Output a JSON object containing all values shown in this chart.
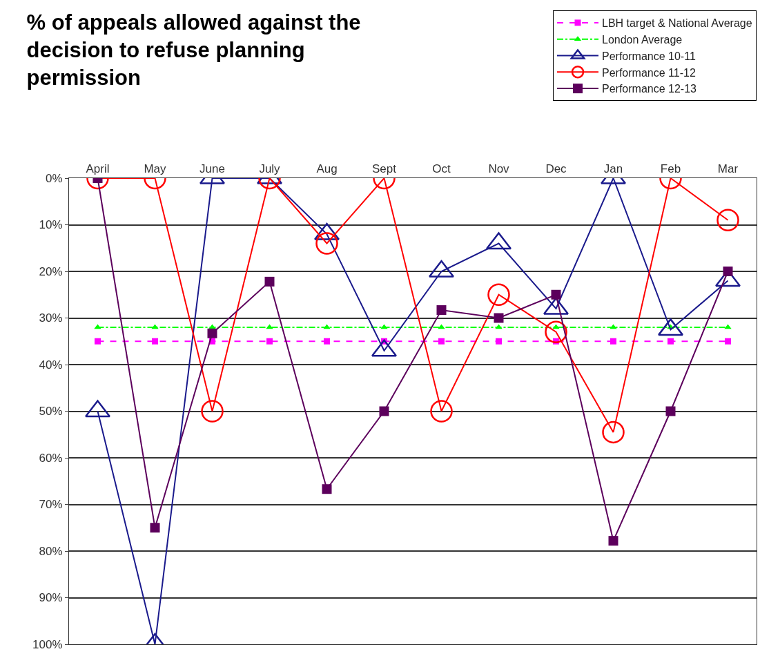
{
  "chart_data": {
    "type": "line",
    "title": "% of appeals allowed against the decision to refuse planning permission",
    "categories": [
      "April",
      "May",
      "June",
      "July",
      "Aug",
      "Sept",
      "Oct",
      "Nov",
      "Dec",
      "Jan",
      "Feb",
      "Mar"
    ],
    "series": [
      {
        "name": "LBH target & National Average",
        "color": "#ff00ff",
        "marker": "square",
        "line_style": "dashed",
        "values": [
          35,
          35,
          35,
          35,
          35,
          35,
          35,
          35,
          35,
          35,
          35,
          35
        ]
      },
      {
        "name": "London Average",
        "color": "#00ff00",
        "marker": "triangle",
        "line_style": "dashed",
        "values": [
          32,
          32,
          32,
          32,
          32,
          32,
          32,
          32,
          32,
          32,
          32,
          32
        ]
      },
      {
        "name": "Performance 10-11",
        "color": "#1a1a8c",
        "marker": "triangle",
        "line_style": "solid",
        "values": [
          50,
          100,
          0,
          0,
          12,
          37,
          20,
          14,
          28,
          0,
          32.5,
          22
        ]
      },
      {
        "name": "Performance 11-12",
        "color": "#ff0000",
        "marker": "circle",
        "line_style": "solid",
        "values": [
          0,
          0,
          50,
          0,
          14,
          0,
          50,
          25,
          33,
          54.5,
          0,
          9
        ]
      },
      {
        "name": "Performance 12-13",
        "color": "#5c005c",
        "marker": "square",
        "line_style": "solid",
        "values": [
          0,
          75,
          33.3,
          22.2,
          66.7,
          50,
          28.3,
          30,
          25,
          77.8,
          50,
          20
        ]
      }
    ],
    "ylim": [
      100,
      0
    ],
    "yticks": [
      {
        "value": 0,
        "label": "0%"
      },
      {
        "value": 10,
        "label": "10%"
      },
      {
        "value": 20,
        "label": "20%"
      },
      {
        "value": 30,
        "label": "30%"
      },
      {
        "value": 40,
        "label": "40%"
      },
      {
        "value": 50,
        "label": "50%"
      },
      {
        "value": 60,
        "label": "60%"
      },
      {
        "value": 70,
        "label": "70%"
      },
      {
        "value": 80,
        "label": "80%"
      },
      {
        "value": 90,
        "label": "90%"
      },
      {
        "value": 100,
        "label": "100%"
      }
    ],
    "grid": "y",
    "legend": "top right"
  }
}
